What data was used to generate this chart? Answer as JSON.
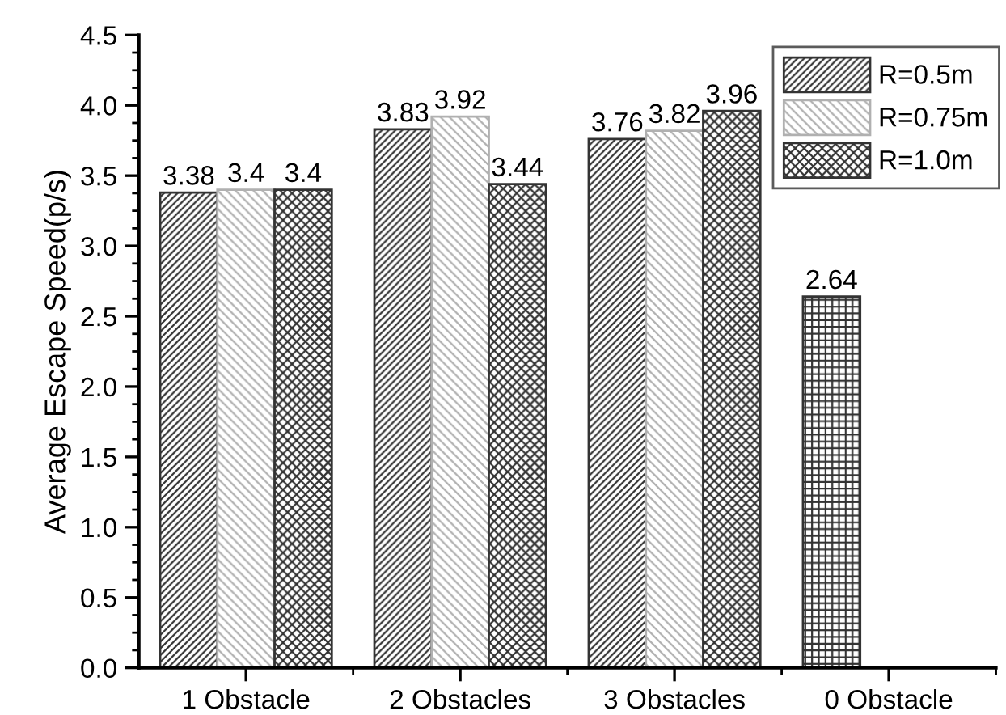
{
  "chart_data": {
    "type": "bar",
    "ylabel": "Average Escape Speed(p/s)",
    "categories": [
      "1 Obstacle",
      "2 Obstacles",
      "3 Obstacles",
      "0 Obstacle"
    ],
    "series": [
      {
        "name": "R=0.5m",
        "color": "#333333",
        "values": [
          3.38,
          3.83,
          3.76,
          null
        ]
      },
      {
        "name": "R=0.75m",
        "color": "#b0b0b0",
        "values": [
          3.4,
          3.92,
          3.82,
          null
        ]
      },
      {
        "name": "R=1.0m",
        "color": "#333333",
        "values": [
          3.4,
          3.44,
          3.96,
          null
        ]
      },
      {
        "color": "#333333",
        "values": [
          null,
          null,
          null,
          2.64
        ]
      }
    ],
    "ylim": [
      0,
      4.5
    ],
    "yticks": [
      {
        "value": 0,
        "label": "0.0"
      },
      0.5,
      {
        "value": 1,
        "label": "1.0"
      },
      1.5,
      {
        "value": 2,
        "label": "2.0"
      },
      2.5,
      {
        "value": 3,
        "label": "3.0"
      },
      3.5,
      {
        "value": 4,
        "label": "4.0"
      },
      4.5
    ],
    "data_labels": true,
    "legend": "top right",
    "grid": false
  }
}
